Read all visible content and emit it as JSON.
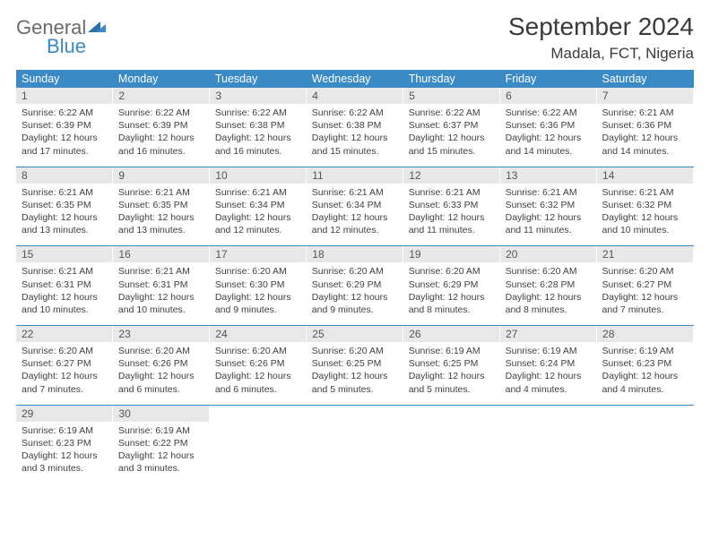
{
  "brand": {
    "general": "General",
    "blue": "Blue"
  },
  "header": {
    "month_title": "September 2024",
    "location": "Madala, FCT, Nigeria"
  },
  "colors": {
    "header_bg": "#3a8ac6",
    "header_text": "#ffffff",
    "daynum_bg": "#e8e8e8",
    "text": "#3f3f3f",
    "rule": "#3a8ac6"
  },
  "day_names": [
    "Sunday",
    "Monday",
    "Tuesday",
    "Wednesday",
    "Thursday",
    "Friday",
    "Saturday"
  ],
  "weeks": [
    [
      {
        "n": "1",
        "sr": "6:22 AM",
        "ss": "6:39 PM",
        "dl": "12 hours and 17 minutes."
      },
      {
        "n": "2",
        "sr": "6:22 AM",
        "ss": "6:39 PM",
        "dl": "12 hours and 16 minutes."
      },
      {
        "n": "3",
        "sr": "6:22 AM",
        "ss": "6:38 PM",
        "dl": "12 hours and 16 minutes."
      },
      {
        "n": "4",
        "sr": "6:22 AM",
        "ss": "6:38 PM",
        "dl": "12 hours and 15 minutes."
      },
      {
        "n": "5",
        "sr": "6:22 AM",
        "ss": "6:37 PM",
        "dl": "12 hours and 15 minutes."
      },
      {
        "n": "6",
        "sr": "6:22 AM",
        "ss": "6:36 PM",
        "dl": "12 hours and 14 minutes."
      },
      {
        "n": "7",
        "sr": "6:21 AM",
        "ss": "6:36 PM",
        "dl": "12 hours and 14 minutes."
      }
    ],
    [
      {
        "n": "8",
        "sr": "6:21 AM",
        "ss": "6:35 PM",
        "dl": "12 hours and 13 minutes."
      },
      {
        "n": "9",
        "sr": "6:21 AM",
        "ss": "6:35 PM",
        "dl": "12 hours and 13 minutes."
      },
      {
        "n": "10",
        "sr": "6:21 AM",
        "ss": "6:34 PM",
        "dl": "12 hours and 12 minutes."
      },
      {
        "n": "11",
        "sr": "6:21 AM",
        "ss": "6:34 PM",
        "dl": "12 hours and 12 minutes."
      },
      {
        "n": "12",
        "sr": "6:21 AM",
        "ss": "6:33 PM",
        "dl": "12 hours and 11 minutes."
      },
      {
        "n": "13",
        "sr": "6:21 AM",
        "ss": "6:32 PM",
        "dl": "12 hours and 11 minutes."
      },
      {
        "n": "14",
        "sr": "6:21 AM",
        "ss": "6:32 PM",
        "dl": "12 hours and 10 minutes."
      }
    ],
    [
      {
        "n": "15",
        "sr": "6:21 AM",
        "ss": "6:31 PM",
        "dl": "12 hours and 10 minutes."
      },
      {
        "n": "16",
        "sr": "6:21 AM",
        "ss": "6:31 PM",
        "dl": "12 hours and 10 minutes."
      },
      {
        "n": "17",
        "sr": "6:20 AM",
        "ss": "6:30 PM",
        "dl": "12 hours and 9 minutes."
      },
      {
        "n": "18",
        "sr": "6:20 AM",
        "ss": "6:29 PM",
        "dl": "12 hours and 9 minutes."
      },
      {
        "n": "19",
        "sr": "6:20 AM",
        "ss": "6:29 PM",
        "dl": "12 hours and 8 minutes."
      },
      {
        "n": "20",
        "sr": "6:20 AM",
        "ss": "6:28 PM",
        "dl": "12 hours and 8 minutes."
      },
      {
        "n": "21",
        "sr": "6:20 AM",
        "ss": "6:27 PM",
        "dl": "12 hours and 7 minutes."
      }
    ],
    [
      {
        "n": "22",
        "sr": "6:20 AM",
        "ss": "6:27 PM",
        "dl": "12 hours and 7 minutes."
      },
      {
        "n": "23",
        "sr": "6:20 AM",
        "ss": "6:26 PM",
        "dl": "12 hours and 6 minutes."
      },
      {
        "n": "24",
        "sr": "6:20 AM",
        "ss": "6:26 PM",
        "dl": "12 hours and 6 minutes."
      },
      {
        "n": "25",
        "sr": "6:20 AM",
        "ss": "6:25 PM",
        "dl": "12 hours and 5 minutes."
      },
      {
        "n": "26",
        "sr": "6:19 AM",
        "ss": "6:25 PM",
        "dl": "12 hours and 5 minutes."
      },
      {
        "n": "27",
        "sr": "6:19 AM",
        "ss": "6:24 PM",
        "dl": "12 hours and 4 minutes."
      },
      {
        "n": "28",
        "sr": "6:19 AM",
        "ss": "6:23 PM",
        "dl": "12 hours and 4 minutes."
      }
    ],
    [
      {
        "n": "29",
        "sr": "6:19 AM",
        "ss": "6:23 PM",
        "dl": "12 hours and 3 minutes."
      },
      {
        "n": "30",
        "sr": "6:19 AM",
        "ss": "6:22 PM",
        "dl": "12 hours and 3 minutes."
      },
      null,
      null,
      null,
      null,
      null
    ]
  ],
  "labels": {
    "sunrise": "Sunrise:",
    "sunset": "Sunset:",
    "daylight": "Daylight:"
  }
}
